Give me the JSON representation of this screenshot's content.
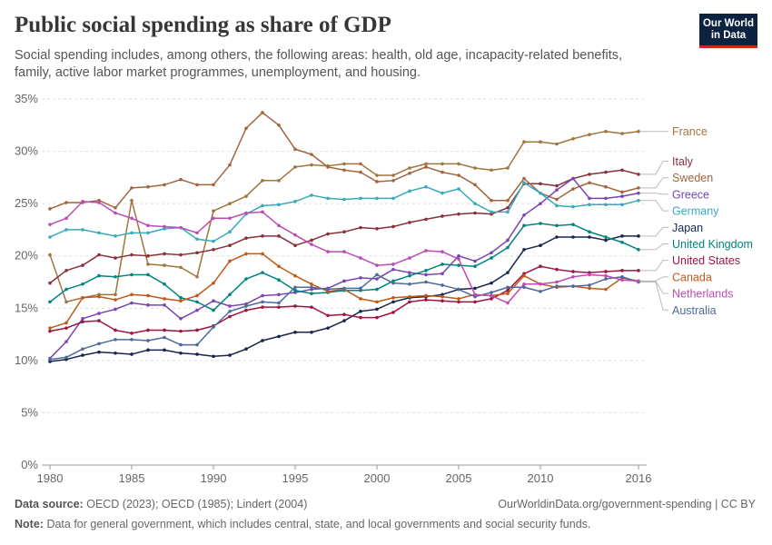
{
  "header": {
    "title": "Public social spending as share of GDP",
    "subtitle": "Social spending includes, among others, the following areas: health, old age, incapacity-related benefits, family, active labor market programmes, unemployment, and housing.",
    "logo_line1": "Our World",
    "logo_line2": "in Data"
  },
  "footer": {
    "source_label": "Data source:",
    "source_text": "OECD (2023); OECD (1985); Lindert (2004)",
    "url": "OurWorldinData.org/government-spending | CC BY",
    "note_label": "Note:",
    "note_text": "Data for general government, which includes central, state, and local governments and social security funds."
  },
  "chart_data": {
    "type": "line",
    "title": "Public social spending as share of GDP",
    "xlim": [
      1979.5,
      2016.5
    ],
    "ylim": [
      0,
      35
    ],
    "yticks": [
      0,
      5,
      10,
      15,
      20,
      25,
      30,
      35
    ],
    "ytick_labels": [
      "0%",
      "5%",
      "10%",
      "15%",
      "20%",
      "25%",
      "30%",
      "35%"
    ],
    "xticks": [
      1980,
      1985,
      1990,
      1995,
      2000,
      2005,
      2010,
      2016
    ],
    "grid": "horizontal dashed",
    "legend": "right, labels at line ends",
    "x": [
      1980,
      1981,
      1982,
      1983,
      1984,
      1985,
      1986,
      1987,
      1988,
      1989,
      1990,
      1991,
      1992,
      1993,
      1994,
      1995,
      1996,
      1997,
      1998,
      1999,
      2000,
      2001,
      2002,
      2003,
      2004,
      2005,
      2006,
      2007,
      2008,
      2009,
      2010,
      2011,
      2012,
      2013,
      2014,
      2015,
      2016
    ],
    "series": [
      {
        "name": "France",
        "color": "#a2743d",
        "values": [
          20.1,
          15.6,
          16.0,
          16.3,
          16.3,
          25.3,
          19.2,
          19.1,
          18.9,
          18.0,
          24.3,
          25.0,
          25.7,
          27.2,
          27.2,
          28.5,
          28.7,
          28.6,
          28.8,
          28.8,
          27.7,
          27.7,
          28.4,
          28.8,
          28.8,
          28.8,
          28.4,
          28.2,
          28.4,
          30.9,
          30.9,
          30.7,
          31.2,
          31.6,
          31.9,
          31.7,
          31.9
        ]
      },
      {
        "name": "Italy",
        "color": "#883039",
        "values": [
          17.4,
          18.6,
          19.1,
          20.1,
          19.8,
          20.1,
          20.0,
          20.2,
          20.1,
          20.3,
          20.6,
          21.0,
          21.7,
          21.9,
          21.9,
          21.0,
          21.5,
          22.1,
          22.3,
          22.7,
          22.6,
          22.8,
          23.2,
          23.5,
          23.8,
          24.0,
          24.1,
          24.0,
          24.6,
          26.9,
          26.9,
          26.7,
          27.4,
          27.8,
          28.0,
          28.2,
          27.8
        ]
      },
      {
        "name": "Sweden",
        "color": "#a2643d",
        "values": [
          24.5,
          25.1,
          25.1,
          25.3,
          24.6,
          26.5,
          26.6,
          26.8,
          27.3,
          26.8,
          26.8,
          28.7,
          32.2,
          33.7,
          32.5,
          30.2,
          29.7,
          28.5,
          28.2,
          28.0,
          27.1,
          27.2,
          27.9,
          28.5,
          28.0,
          27.7,
          26.8,
          25.3,
          25.3,
          27.4,
          26.0,
          25.4,
          26.4,
          27.0,
          26.6,
          26.1,
          26.5
        ]
      },
      {
        "name": "Greece",
        "color": "#7a44b0",
        "values": [
          10.2,
          11.8,
          14.0,
          14.5,
          14.9,
          15.5,
          15.3,
          15.3,
          14.0,
          14.8,
          15.7,
          15.2,
          15.4,
          16.2,
          16.3,
          16.5,
          16.8,
          16.9,
          17.6,
          17.9,
          17.8,
          18.7,
          18.4,
          18.2,
          18.3,
          20.0,
          19.5,
          20.3,
          21.5,
          23.9,
          25.0,
          26.3,
          27.4,
          25.5,
          25.5,
          25.7,
          26.0
        ]
      },
      {
        "name": "Germany",
        "color": "#38aaba",
        "values": [
          21.8,
          22.5,
          22.5,
          22.2,
          21.9,
          22.2,
          22.2,
          22.6,
          22.7,
          21.6,
          21.4,
          22.3,
          24.0,
          24.8,
          24.9,
          25.2,
          25.8,
          25.5,
          25.4,
          25.5,
          25.5,
          25.5,
          26.2,
          26.6,
          26.0,
          26.4,
          25.0,
          24.2,
          24.2,
          27.0,
          26.0,
          24.8,
          24.7,
          24.9,
          24.9,
          24.9,
          25.3
        ]
      },
      {
        "name": "Japan",
        "color": "#18254e",
        "values": [
          9.9,
          10.1,
          10.5,
          10.8,
          10.7,
          10.6,
          11.0,
          11.0,
          10.7,
          10.6,
          10.4,
          10.5,
          11.1,
          11.9,
          12.3,
          12.7,
          12.7,
          13.1,
          13.8,
          14.7,
          14.9,
          15.6,
          16.0,
          16.1,
          16.3,
          16.8,
          16.9,
          17.4,
          18.4,
          20.6,
          21.0,
          21.8,
          21.8,
          21.8,
          21.5,
          21.9,
          21.9
        ]
      },
      {
        "name": "United Kingdom",
        "color": "#00847e",
        "values": [
          15.6,
          16.8,
          17.3,
          18.1,
          18.0,
          18.2,
          18.2,
          17.3,
          16.0,
          15.6,
          14.8,
          16.3,
          17.8,
          18.4,
          17.7,
          16.7,
          16.4,
          16.5,
          16.7,
          16.7,
          16.8,
          17.6,
          18.1,
          18.6,
          19.2,
          19.1,
          19.0,
          19.8,
          20.8,
          22.9,
          23.1,
          22.9,
          23.0,
          22.3,
          21.8,
          21.3,
          20.6
        ]
      },
      {
        "name": "United States",
        "color": "#a1143f",
        "values": [
          12.8,
          13.1,
          13.7,
          13.8,
          12.9,
          12.6,
          12.9,
          12.9,
          12.8,
          12.9,
          13.3,
          14.2,
          14.8,
          15.1,
          15.1,
          15.2,
          15.1,
          14.3,
          14.4,
          14.1,
          14.1,
          14.6,
          15.6,
          15.8,
          15.7,
          15.6,
          15.6,
          15.9,
          16.7,
          18.3,
          19.0,
          18.7,
          18.5,
          18.4,
          18.5,
          18.6,
          18.6
        ]
      },
      {
        "name": "Canada",
        "color": "#c05917",
        "values": [
          13.1,
          13.6,
          16.0,
          16.1,
          15.8,
          16.3,
          16.2,
          15.9,
          15.7,
          16.2,
          17.4,
          19.5,
          20.2,
          20.2,
          19.0,
          18.1,
          17.3,
          16.6,
          16.8,
          15.9,
          15.6,
          16.0,
          16.1,
          16.2,
          16.1,
          15.9,
          16.3,
          16.2,
          16.4,
          18.1,
          17.3,
          17.0,
          17.1,
          16.9,
          16.8,
          17.9,
          17.6
        ]
      },
      {
        "name": "Australia",
        "color": "#4c6a9c",
        "values": [
          10.1,
          10.3,
          11.1,
          11.6,
          12.0,
          12.0,
          11.9,
          12.2,
          11.5,
          11.5,
          13.2,
          14.7,
          15.2,
          15.6,
          15.5,
          17.0,
          17.0,
          16.8,
          16.9,
          16.9,
          18.2,
          17.4,
          17.3,
          17.5,
          17.2,
          16.8,
          16.1,
          16.5,
          17.0,
          17.0,
          16.6,
          17.1,
          17.1,
          17.2,
          17.8,
          18.0,
          17.5
        ]
      },
      {
        "name": "Netherlands",
        "color": "#bc4bb5",
        "values": [
          23.0,
          23.6,
          25.2,
          25.1,
          24.1,
          23.6,
          22.9,
          22.8,
          22.7,
          22.2,
          23.6,
          23.6,
          24.1,
          24.2,
          22.9,
          22.0,
          21.1,
          20.4,
          20.4,
          19.8,
          19.1,
          19.2,
          19.8,
          20.5,
          20.4,
          19.7,
          16.3,
          16.2,
          15.5,
          17.3,
          17.3,
          17.5,
          18.0,
          18.2,
          18.1,
          17.7,
          17.6
        ]
      }
    ]
  }
}
